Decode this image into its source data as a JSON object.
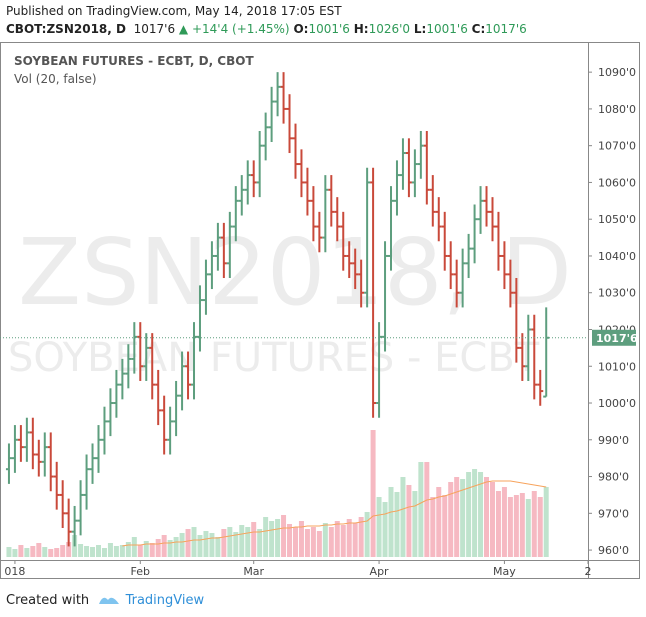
{
  "header": {
    "published": "Published on TradingView.com, May 14, 2018 17:05 EST",
    "symbol": "CBOT:ZSN2018, D",
    "price": "1017'6",
    "change": "+14'4 (+1.45%)",
    "open_label": "O:",
    "open": "1001'6",
    "high_label": "H:",
    "high": "1026'0",
    "low_label": "L:",
    "low": "1001'6",
    "close_label": "C:",
    "close": "1017'6"
  },
  "chart_data": {
    "type": "ohlc",
    "title": "SOYBEAN FUTURES - ECBT, D, CBOT",
    "subtitle": "Vol (20, false)",
    "watermark": "ZSN2018, D",
    "watermark_sub": "SOYBEAN FUTURES - ECBT",
    "up_color": "#5d9e7e",
    "down_color": "#c9493a",
    "volume_up_color": "#bfe3cd",
    "volume_down_color": "#f6b9c2",
    "volume_ma_color": "#f7a35c",
    "open": [
      982,
      985,
      990,
      988,
      992,
      986,
      984,
      988,
      980,
      975,
      970,
      965,
      968,
      975,
      982,
      985,
      990,
      995,
      1000,
      1005,
      1008,
      1012,
      1018,
      1010,
      1015,
      1005,
      998,
      990,
      995,
      1002,
      1010,
      1005,
      1018,
      1028,
      1035,
      1040,
      1045,
      1038,
      1048,
      1055,
      1058,
      1062,
      1060,
      1070,
      1075,
      1082,
      1086,
      1080,
      1072,
      1065,
      1060,
      1055,
      1048,
      1045,
      1058,
      1052,
      1048,
      1040,
      1038,
      1035,
      1030,
      1060,
      1000,
      1018,
      1040,
      1055,
      1062,
      1068,
      1060,
      1065,
      1070,
      1058,
      1052,
      1048,
      1040,
      1035,
      1030,
      1038,
      1042,
      1050,
      1055,
      1052,
      1048,
      1040,
      1035,
      1030,
      1015,
      1010,
      1020,
      1005,
      1001.75
    ],
    "high": [
      989,
      994,
      994,
      996,
      996,
      990,
      992,
      992,
      984,
      979,
      974,
      972,
      979,
      986,
      989,
      994,
      999,
      1004,
      1009,
      1012,
      1016,
      1022,
      1022,
      1019,
      1019,
      1009,
      1002,
      999,
      1006,
      1014,
      1014,
      1022,
      1032,
      1039,
      1044,
      1049,
      1049,
      1052,
      1059,
      1062,
      1066,
      1066,
      1074,
      1079,
      1086,
      1090,
      1090,
      1084,
      1076,
      1069,
      1064,
      1059,
      1052,
      1062,
      1062,
      1056,
      1052,
      1044,
      1042,
      1039,
      1064,
      1064,
      1022,
      1044,
      1059,
      1066,
      1072,
      1072,
      1069,
      1074,
      1074,
      1062,
      1056,
      1052,
      1044,
      1039,
      1042,
      1046,
      1054,
      1059,
      1059,
      1056,
      1052,
      1044,
      1039,
      1034,
      1019,
      1024,
      1024,
      1009,
      1026
    ],
    "low": [
      978,
      981,
      984,
      984,
      982,
      980,
      980,
      976,
      971,
      966,
      961,
      961,
      964,
      971,
      978,
      981,
      986,
      991,
      996,
      1001,
      1004,
      1008,
      1006,
      1006,
      1001,
      994,
      986,
      986,
      991,
      998,
      1001,
      1001,
      1014,
      1024,
      1031,
      1036,
      1034,
      1034,
      1044,
      1051,
      1054,
      1056,
      1056,
      1066,
      1071,
      1078,
      1076,
      1068,
      1061,
      1056,
      1051,
      1044,
      1041,
      1041,
      1048,
      1044,
      1036,
      1034,
      1031,
      1026,
      1026,
      996,
      996,
      1014,
      1036,
      1051,
      1058,
      1056,
      1056,
      1061,
      1054,
      1048,
      1044,
      1036,
      1031,
      1026,
      1026,
      1034,
      1038,
      1046,
      1048,
      1044,
      1036,
      1031,
      1026,
      1011,
      1006,
      1006,
      1001,
      999.25,
      1001.75
    ],
    "close": [
      985,
      990,
      988,
      992,
      986,
      984,
      988,
      980,
      975,
      970,
      965,
      968,
      975,
      982,
      985,
      990,
      995,
      1000,
      1005,
      1008,
      1012,
      1018,
      1010,
      1015,
      1005,
      998,
      990,
      995,
      1002,
      1010,
      1005,
      1018,
      1028,
      1035,
      1040,
      1045,
      1038,
      1048,
      1055,
      1058,
      1062,
      1060,
      1070,
      1075,
      1082,
      1086,
      1080,
      1072,
      1065,
      1060,
      1055,
      1048,
      1045,
      1058,
      1052,
      1048,
      1040,
      1038,
      1035,
      1030,
      1060,
      1000,
      1018,
      1040,
      1055,
      1062,
      1068,
      1060,
      1065,
      1070,
      1058,
      1052,
      1048,
      1040,
      1035,
      1030,
      1038,
      1042,
      1050,
      1055,
      1052,
      1048,
      1040,
      1035,
      1030,
      1015,
      1010,
      1020,
      1005,
      1003.25,
      1017.75
    ],
    "volume": [
      10,
      8,
      12,
      9,
      11,
      14,
      10,
      8,
      9,
      12,
      15,
      22,
      13,
      11,
      10,
      12,
      9,
      14,
      11,
      12,
      15,
      20,
      12,
      16,
      14,
      18,
      22,
      17,
      20,
      24,
      28,
      30,
      22,
      26,
      24,
      20,
      28,
      30,
      25,
      32,
      30,
      35,
      28,
      40,
      36,
      38,
      42,
      33,
      30,
      36,
      28,
      30,
      26,
      34,
      30,
      36,
      32,
      38,
      34,
      40,
      45,
      127,
      60,
      55,
      70,
      65,
      80,
      72,
      66,
      95,
      95,
      60,
      70,
      62,
      75,
      80,
      78,
      85,
      88,
      85,
      80,
      75,
      66,
      70,
      60,
      62,
      64,
      58,
      66,
      60,
      70
    ],
    "volume_ma": [
      null,
      null,
      null,
      null,
      null,
      null,
      null,
      null,
      null,
      null,
      null,
      null,
      null,
      null,
      null,
      null,
      null,
      null,
      null,
      11,
      12,
      12,
      12,
      13,
      13,
      13,
      14,
      14,
      15,
      15,
      16,
      17,
      17,
      18,
      19,
      19,
      20,
      21,
      22,
      23,
      24,
      25,
      25,
      26,
      27,
      28,
      29,
      29,
      30,
      30,
      31,
      31,
      31,
      32,
      32,
      33,
      33,
      34,
      34,
      35,
      36,
      41,
      42,
      43,
      45,
      46,
      48,
      50,
      51,
      54,
      57,
      58,
      60,
      61,
      63,
      65,
      67,
      69,
      71,
      73,
      75,
      76,
      76,
      76,
      76,
      75,
      74,
      73,
      72,
      71,
      70
    ],
    "xlim": [
      -1.5,
      97
    ],
    "xticks": [
      {
        "value": 1,
        "label": "018"
      },
      {
        "value": 22,
        "label": "Feb"
      },
      {
        "value": 41,
        "label": "Mar"
      },
      {
        "value": 62,
        "label": "Apr"
      },
      {
        "value": 83,
        "label": "May"
      },
      {
        "value": 97,
        "label": "2"
      }
    ],
    "ylim": [
      957.3,
      1098.2
    ],
    "yticks": [
      {
        "value": 960,
        "label": "960'0"
      },
      {
        "value": 970,
        "label": "970'0"
      },
      {
        "value": 980,
        "label": "980'0"
      },
      {
        "value": 990,
        "label": "990'0"
      },
      {
        "value": 1000,
        "label": "1000'0"
      },
      {
        "value": 1010,
        "label": "1010'0"
      },
      {
        "value": 1020,
        "label": "1020'0"
      },
      {
        "value": 1030,
        "label": "1030'0"
      },
      {
        "value": 1040,
        "label": "1040'0"
      },
      {
        "value": 1050,
        "label": "1050'0"
      },
      {
        "value": 1060,
        "label": "1060'0"
      },
      {
        "value": 1070,
        "label": "1070'0"
      },
      {
        "value": 1080,
        "label": "1080'0"
      },
      {
        "value": 1090,
        "label": "1090'0"
      }
    ],
    "last_price": {
      "value": 1017.75,
      "label": "1017'6"
    },
    "last_price_color": "#5d9e7e"
  },
  "footer": {
    "created": "Created with",
    "brand": "TradingView"
  }
}
